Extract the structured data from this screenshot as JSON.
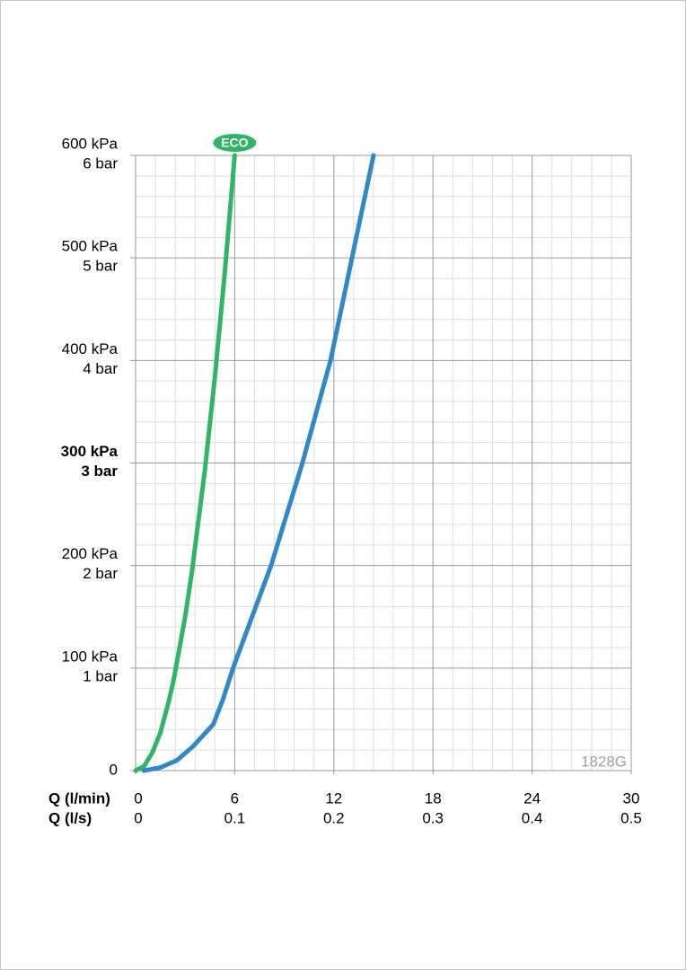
{
  "chart_data": {
    "type": "line",
    "xlabel": "Q (l/min)",
    "x2label": "Q (l/s)",
    "xlim": [
      0,
      30
    ],
    "xticks": [
      0,
      6,
      12,
      18,
      24,
      30
    ],
    "x2lim": [
      0,
      0.5
    ],
    "x2ticks": [
      0,
      0.1,
      0.2,
      0.3,
      0.4,
      0.5
    ],
    "ylim": [
      0,
      600
    ],
    "yticks": [
      0,
      {
        "value": 100,
        "label": "100 kPa"
      },
      {
        "value": 200,
        "label": "200 kPa"
      },
      {
        "value": 300,
        "label": "300 kPa"
      },
      {
        "value": 400,
        "label": "400 kPa"
      },
      {
        "value": 500,
        "label": "500 kPa"
      },
      {
        "value": 600,
        "label": "600 kPa"
      }
    ],
    "y2lim": [
      0,
      6
    ],
    "y2ticks": [
      {
        "value": 1,
        "label": "1 bar"
      },
      {
        "value": 2,
        "label": "2 bar"
      },
      {
        "value": 3,
        "label": "3 bar"
      },
      {
        "value": 4,
        "label": "4 bar"
      },
      {
        "value": 5,
        "label": "5 bar"
      },
      {
        "value": 6,
        "label": "6 bar"
      }
    ],
    "bold_ytick_value": 300,
    "grid": true,
    "series": [
      {
        "name": "ECO",
        "color": "#2fb565",
        "x": [
          0,
          0.5,
          1,
          1.5,
          2,
          2.3,
          3,
          3.4,
          4.2,
          4.8,
          5.4,
          6.0
        ],
        "values": [
          0,
          4,
          17,
          37,
          67,
          88,
          150,
          193,
          294,
          384,
          486,
          600
        ]
      },
      {
        "color": "#2f88c8",
        "x": [
          0.5,
          1.5,
          2.5,
          3.5,
          4.7,
          5.3,
          5.9,
          8.2,
          10.1,
          11.8,
          13.1,
          14.4
        ],
        "values": [
          0,
          3,
          10,
          24,
          45,
          70,
          100,
          200,
          300,
          400,
          500,
          600
        ]
      }
    ],
    "watermark": "1828G"
  }
}
